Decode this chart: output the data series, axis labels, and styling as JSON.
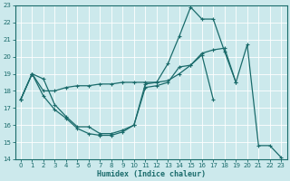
{
  "xlabel": "Humidex (Indice chaleur)",
  "bg_color": "#cce9ec",
  "line_color": "#1a6b6b",
  "grid_color": "#ffffff",
  "xlim": [
    -0.5,
    23.5
  ],
  "ylim": [
    14,
    23
  ],
  "xticks": [
    0,
    1,
    2,
    3,
    4,
    5,
    6,
    7,
    8,
    9,
    10,
    11,
    12,
    13,
    14,
    15,
    16,
    17,
    18,
    19,
    20,
    21,
    22,
    23
  ],
  "yticks": [
    14,
    15,
    16,
    17,
    18,
    19,
    20,
    21,
    22,
    23
  ],
  "lines": [
    {
      "x": [
        0,
        1,
        2,
        3,
        4,
        5,
        6,
        7,
        8,
        9,
        10,
        11,
        12,
        13,
        14,
        15,
        16,
        17,
        18,
        19,
        20,
        21,
        22,
        23
      ],
      "y": [
        17.5,
        19.0,
        18.7,
        17.2,
        16.5,
        15.9,
        15.9,
        15.5,
        15.5,
        15.7,
        16.0,
        18.4,
        18.5,
        19.6,
        21.2,
        22.9,
        22.2,
        22.2,
        20.3,
        18.5,
        20.7,
        14.8,
        14.8,
        14.1
      ]
    },
    {
      "x": [
        0,
        1,
        2,
        3,
        4,
        5,
        6,
        7,
        8,
        9,
        10,
        11,
        12,
        13,
        14,
        15,
        16,
        17,
        18,
        19
      ],
      "y": [
        17.5,
        19.0,
        18.0,
        18.0,
        18.2,
        18.3,
        18.3,
        18.4,
        18.4,
        18.5,
        18.5,
        18.5,
        18.5,
        18.6,
        19.0,
        19.5,
        20.2,
        20.4,
        20.5,
        18.5
      ]
    },
    {
      "x": [
        0,
        1,
        2,
        3,
        4,
        5,
        6,
        7,
        8,
        9,
        10,
        11,
        12,
        13,
        14,
        15,
        16,
        17
      ],
      "y": [
        17.5,
        19.0,
        17.7,
        16.9,
        16.4,
        15.8,
        15.5,
        15.4,
        15.4,
        15.6,
        16.0,
        18.2,
        18.3,
        18.5,
        19.4,
        19.5,
        20.1,
        17.5
      ]
    }
  ]
}
